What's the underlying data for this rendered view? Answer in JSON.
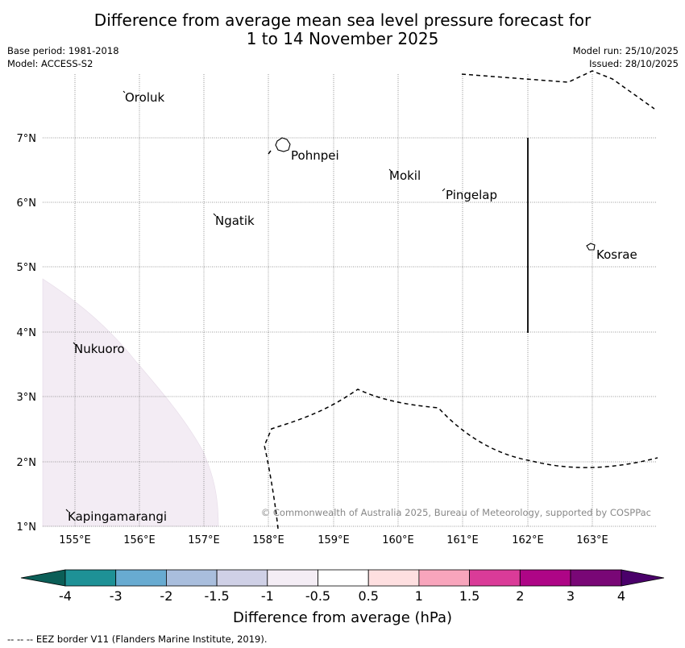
{
  "title_line1": "Difference from average mean sea level pressure forecast for",
  "title_line2": "1 to 14 November 2025",
  "meta": {
    "base_period": "Base period: 1981-2018",
    "model": "Model: ACCESS-S2",
    "model_run": "Model run: 25/10/2025",
    "issued": "Issued: 28/10/2025"
  },
  "axes": {
    "lon_labels": [
      "155°E",
      "156°E",
      "157°E",
      "158°E",
      "159°E",
      "160°E",
      "161°E",
      "162°E",
      "163°E"
    ],
    "lat_labels": [
      "7°N",
      "6°N",
      "5°N",
      "4°N",
      "3°N",
      "2°N",
      "1°N"
    ]
  },
  "places": {
    "oroluk": "Oroluk",
    "pohnpei": "Pohnpei",
    "mokil": "Mokil",
    "pingelap": "Pingelap",
    "ngatik": "Ngatik",
    "kosrae": "Kosrae",
    "nukuoro": "Nukuoro",
    "kapingamarangi": "Kapingamarangi"
  },
  "copyright": "© Commonwealth of Australia 2025, Bureau of Meteorology, supported by COSPPac",
  "colorbar": {
    "title": "Difference from average (hPa)",
    "labels": [
      "-4",
      "-3",
      "-2",
      "-1.5",
      "-1",
      "-0.5",
      "0.5",
      "1",
      "1.5",
      "2",
      "3",
      "4"
    ],
    "colors": {
      "below": "#0b5e57",
      "bins": [
        "#1e9196",
        "#68abd1",
        "#a9bedd",
        "#cfd0e6",
        "#f4edf5",
        "#ffffff",
        "#fedfe0",
        "#f8a5bc",
        "#da3b98",
        "#ae0586",
        "#790776"
      ],
      "above": "#4a006a",
      "region_fill": "#f3ecf4"
    }
  },
  "footnote": "--  --  -- EEZ border V11 (Flanders Marine Institute, 2019)."
}
